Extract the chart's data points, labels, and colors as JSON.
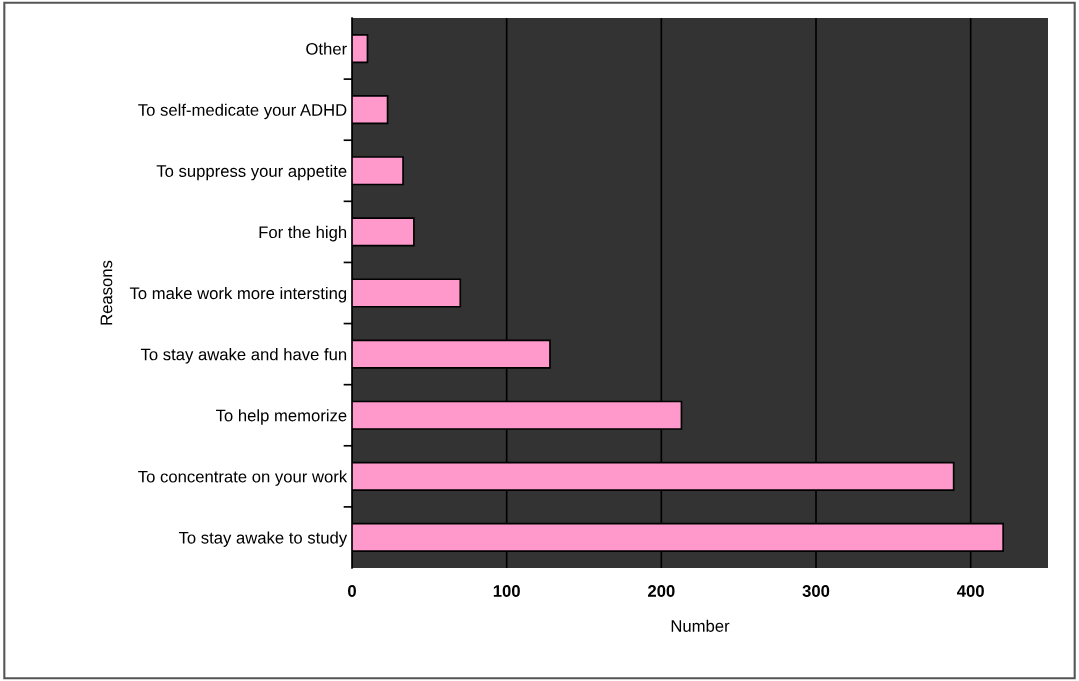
{
  "chart_data": {
    "type": "bar",
    "orientation": "horizontal",
    "xlabel": "Number",
    "ylabel": "Reasons",
    "categories": [
      "Other",
      "To self-medicate your ADHD",
      "To suppress your appetite",
      "For the high",
      "To make work more intersting",
      "To stay awake and have fun",
      "To help memorize",
      "To concentrate on your work",
      "To stay awake to study"
    ],
    "values": [
      10,
      23,
      33,
      40,
      70,
      128,
      213,
      389,
      421
    ],
    "color": "#ff99cc",
    "xlim": [
      0,
      450
    ],
    "xticks": [
      0,
      100,
      200,
      300,
      400
    ],
    "grid": "x"
  }
}
